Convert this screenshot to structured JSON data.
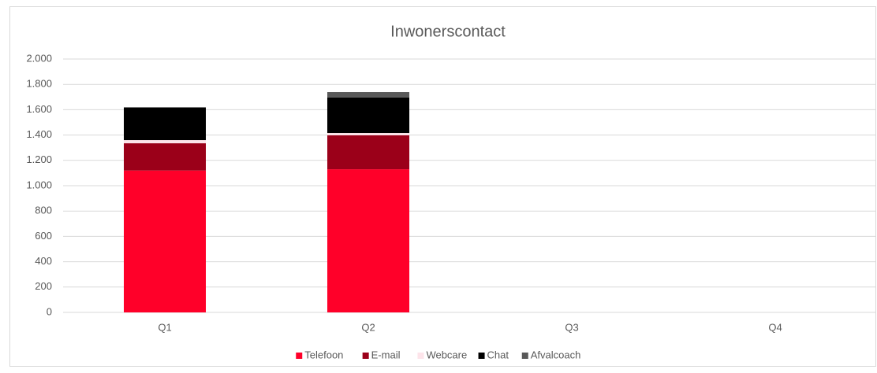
{
  "chart_data": {
    "type": "bar",
    "stacked": true,
    "title": "Inwonerscontact",
    "categories": [
      "Q1",
      "Q2",
      "Q3",
      "Q4"
    ],
    "series": [
      {
        "name": "Telefoon",
        "color": "#ff0029",
        "values": [
          1120,
          1130,
          null,
          null
        ]
      },
      {
        "name": "E-mail",
        "color": "#9b0019",
        "values": [
          215,
          268,
          null,
          null
        ]
      },
      {
        "name": "Webcare",
        "color": "#fde4ea",
        "values": [
          25,
          18,
          null,
          null
        ]
      },
      {
        "name": "Chat",
        "color": "#000000",
        "values": [
          255,
          280,
          null,
          null
        ]
      },
      {
        "name": "Afvalcoach",
        "color": "#595959",
        "values": [
          5,
          43,
          null,
          null
        ]
      }
    ],
    "ylim": [
      0,
      2000
    ],
    "yticks": [
      0,
      200,
      400,
      600,
      800,
      {
        "value": 1000,
        "label": "1.000"
      },
      {
        "value": 1200,
        "label": "1.200"
      },
      {
        "value": 1400,
        "label": "1.400"
      },
      {
        "value": 1600,
        "label": "1.600"
      },
      {
        "value": 1800,
        "label": "1.800"
      },
      {
        "value": 2000,
        "label": "2.000"
      }
    ],
    "grid": true,
    "legend": "bottom"
  }
}
